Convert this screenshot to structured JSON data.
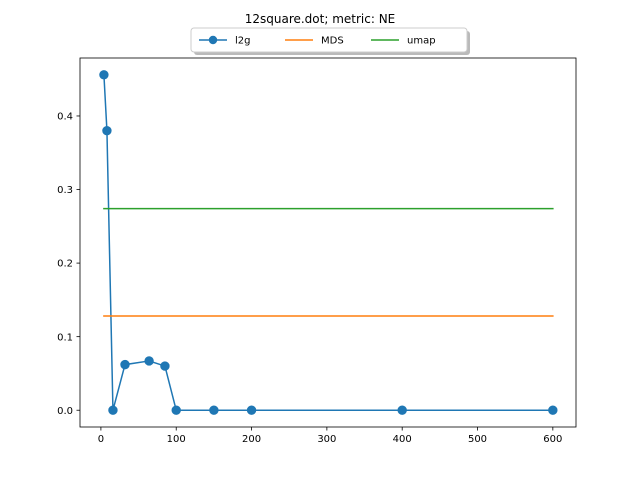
{
  "chart_data": {
    "type": "line",
    "title": "12square.dot; metric: NE",
    "xlabel": "",
    "ylabel": "",
    "xlim": [
      -27.75,
      630.75
    ],
    "ylim": [
      -0.0228,
      0.4788
    ],
    "xticks": [
      0,
      100,
      200,
      300,
      400,
      500,
      600
    ],
    "yticks": [
      0.0,
      0.1,
      0.2,
      0.3,
      0.4
    ],
    "ytick_labels": [
      "0.0",
      "0.1",
      "0.2",
      "0.3",
      "0.4"
    ],
    "grid": false,
    "legend_position": "top-center",
    "series": [
      {
        "name": "l2g",
        "color": "#1f77b4",
        "marker": "circle",
        "x": [
          4,
          8,
          16,
          32,
          64,
          85,
          100,
          150,
          200,
          400,
          600
        ],
        "y": [
          0.456,
          0.38,
          0.0,
          0.062,
          0.067,
          0.06,
          0.0,
          0.0,
          0.0,
          0.0,
          0.0
        ]
      },
      {
        "name": "MDS",
        "color": "#ff7f0e",
        "marker": "none",
        "x": [
          4,
          600
        ],
        "y": [
          0.128,
          0.128
        ]
      },
      {
        "name": "umap",
        "color": "#2ca02c",
        "marker": "none",
        "x": [
          4,
          600
        ],
        "y": [
          0.274,
          0.274
        ]
      }
    ]
  }
}
